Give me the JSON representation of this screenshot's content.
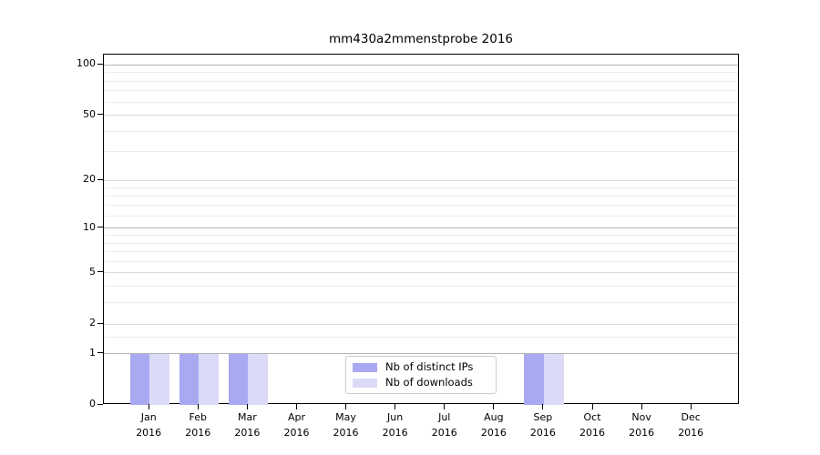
{
  "chart_data": {
    "type": "bar",
    "title": "mm430a2mmenstprobe 2016",
    "categories": [
      "Jan 2016",
      "Feb 2016",
      "Mar 2016",
      "Apr 2016",
      "May 2016",
      "Jun 2016",
      "Jul 2016",
      "Aug 2016",
      "Sep 2016",
      "Oct 2016",
      "Nov 2016",
      "Dec 2016"
    ],
    "series": [
      {
        "name": "Nb of distinct IPs",
        "color": "#a9a9f2",
        "values": [
          1,
          1,
          1,
          0,
          0,
          0,
          0,
          0,
          1,
          0,
          0,
          0
        ]
      },
      {
        "name": "Nb of downloads",
        "color": "#dbdbf8",
        "values": [
          1,
          1,
          1,
          0,
          0,
          0,
          0,
          0,
          1,
          0,
          0,
          0
        ]
      }
    ],
    "xlabel": "",
    "ylabel": "",
    "y_scale": "log1p",
    "y_ticks": [
      0,
      1,
      2,
      5,
      10,
      20,
      50,
      100
    ],
    "y_decade_ticks": [
      1,
      10,
      100
    ],
    "y_minor_gridlines": [
      1.5,
      3,
      4,
      6,
      7,
      8,
      9,
      12,
      14,
      16,
      18,
      30,
      40,
      60,
      70,
      80,
      90
    ],
    "ylim": [
      0,
      115
    ],
    "grid": true,
    "legend_position": "lower center"
  }
}
